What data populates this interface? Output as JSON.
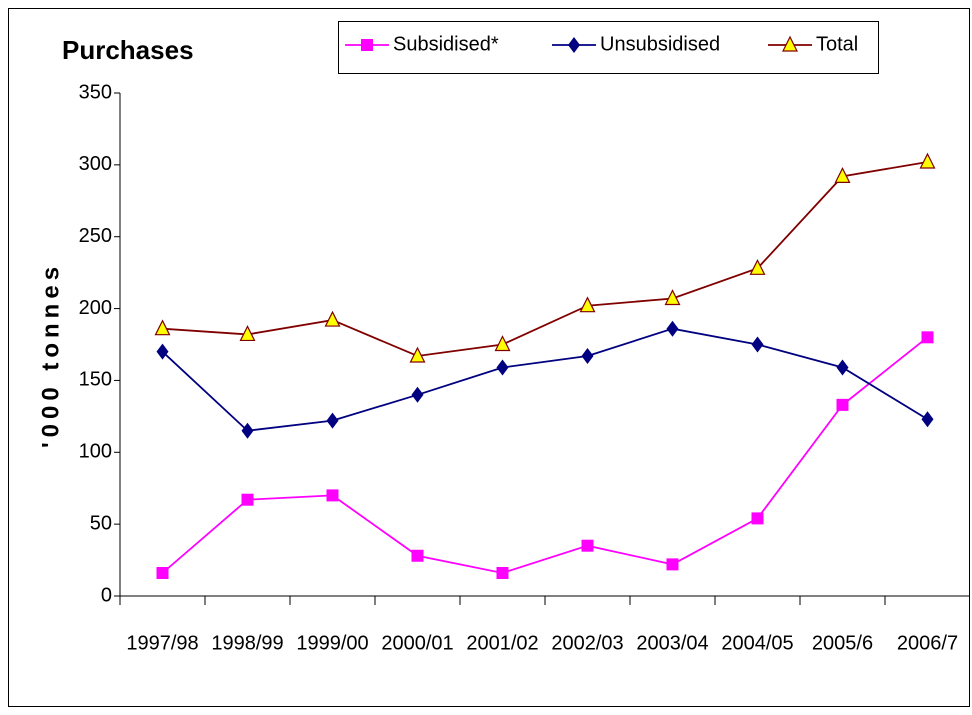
{
  "chart_data": {
    "type": "line",
    "title": "Purchases",
    "y_label": "'000 tonnes",
    "categories": [
      "1997/98",
      "1998/99",
      "1999/00",
      "2000/01",
      "2001/02",
      "2002/03",
      "2003/04",
      "2004/05",
      "2005/6",
      "2006/7"
    ],
    "series": [
      {
        "name": "Subsidised*",
        "color": "#ff00ff",
        "values": [
          16,
          67,
          70,
          28,
          16,
          35,
          22,
          54,
          133,
          180
        ]
      },
      {
        "name": "Unsubsidised",
        "color": "#000080",
        "values": [
          170,
          115,
          122,
          140,
          159,
          167,
          186,
          175,
          159,
          123
        ]
      },
      {
        "name": "Total",
        "color": "#800000",
        "values": [
          186,
          182,
          192,
          167,
          175,
          202,
          207,
          228,
          292,
          302
        ]
      }
    ],
    "ylim": [
      0,
      350
    ],
    "yticks": [
      0,
      50,
      100,
      150,
      200,
      250,
      300,
      350
    ],
    "grid": false
  }
}
